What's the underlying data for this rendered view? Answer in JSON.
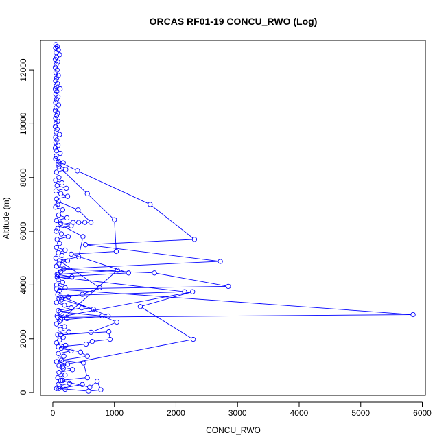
{
  "chart_data": {
    "type": "line",
    "title": "ORCAS RF01-19 CONCU_RWO (Log)",
    "xlabel": "CONCU_RWO",
    "ylabel": "Altitude (m)",
    "xlim": [
      -200,
      6050
    ],
    "ylim": [
      -100,
      13100
    ],
    "x_ticks": [
      0,
      1000,
      2000,
      3000,
      4000,
      5000,
      6000
    ],
    "y_ticks": [
      0,
      2000,
      4000,
      6000,
      8000,
      10000,
      12000
    ],
    "grid": false,
    "legend": "none",
    "color": "#0000ff",
    "marker": "open-circle",
    "series": [
      {
        "points": [
          [
            50,
            12950
          ],
          [
            70,
            12880
          ],
          [
            45,
            12820
          ],
          [
            90,
            12750
          ],
          [
            55,
            12650
          ],
          [
            110,
            12570
          ],
          [
            60,
            12480
          ],
          [
            40,
            12400
          ],
          [
            80,
            12300
          ],
          [
            55,
            12200
          ],
          [
            40,
            12100
          ],
          [
            70,
            12000
          ],
          [
            50,
            11900
          ],
          [
            90,
            11800
          ],
          [
            60,
            11700
          ],
          [
            45,
            11600
          ],
          [
            75,
            11500
          ],
          [
            55,
            11400
          ],
          [
            40,
            11300
          ],
          [
            120,
            11300
          ],
          [
            65,
            11200
          ],
          [
            50,
            11100
          ],
          [
            85,
            11000
          ],
          [
            60,
            10900
          ],
          [
            45,
            10800
          ],
          [
            95,
            10700
          ],
          [
            55,
            10600
          ],
          [
            40,
            10500
          ],
          [
            75,
            10400
          ],
          [
            60,
            10300
          ],
          [
            45,
            10200
          ],
          [
            80,
            10100
          ],
          [
            50,
            10000
          ],
          [
            40,
            9900
          ],
          [
            70,
            9800
          ],
          [
            55,
            9700
          ],
          [
            110,
            9600
          ],
          [
            45,
            9500
          ],
          [
            65,
            9400
          ],
          [
            50,
            9300
          ],
          [
            85,
            9200
          ],
          [
            40,
            9100
          ],
          [
            60,
            9000
          ],
          [
            120,
            8900
          ],
          [
            55,
            8800
          ],
          [
            45,
            8700
          ],
          [
            170,
            8550
          ],
          [
            90,
            8500
          ],
          [
            210,
            8300
          ],
          [
            60,
            8200
          ],
          [
            100,
            8000
          ],
          [
            45,
            7900
          ],
          [
            150,
            7800
          ],
          [
            70,
            7700
          ],
          [
            220,
            7600
          ],
          [
            50,
            7500
          ],
          [
            130,
            7400
          ],
          [
            240,
            7300
          ],
          [
            60,
            7200
          ],
          [
            80,
            7000
          ],
          [
            45,
            6900
          ],
          [
            160,
            6800
          ],
          [
            95,
            6600
          ],
          [
            230,
            6500
          ],
          [
            60,
            6400
          ],
          [
            130,
            6300
          ],
          [
            300,
            6200
          ],
          [
            80,
            6100
          ],
          [
            55,
            6000
          ],
          [
            140,
            5900
          ],
          [
            250,
            5800
          ],
          [
            70,
            5700
          ],
          [
            110,
            5550
          ],
          [
            60,
            5400
          ],
          [
            200,
            5300
          ],
          [
            90,
            5200
          ],
          [
            150,
            5100
          ],
          [
            50,
            5000
          ],
          [
            240,
            4900
          ],
          [
            100,
            4800
          ],
          [
            60,
            4700
          ],
          [
            180,
            4600
          ],
          [
            130,
            4500
          ],
          [
            70,
            4400
          ],
          [
            310,
            4300
          ],
          [
            90,
            4200
          ],
          [
            160,
            4100
          ],
          [
            60,
            4000
          ],
          [
            200,
            3900
          ],
          [
            110,
            3800
          ],
          [
            80,
            3650
          ],
          [
            250,
            3550
          ],
          [
            140,
            3450
          ],
          [
            60,
            3350
          ],
          [
            190,
            3250
          ],
          [
            300,
            3150
          ],
          [
            90,
            3050
          ],
          [
            150,
            2950
          ],
          [
            70,
            2850
          ],
          [
            230,
            2750
          ],
          [
            110,
            2650
          ],
          [
            60,
            2550
          ],
          [
            190,
            2450
          ],
          [
            120,
            2350
          ],
          [
            260,
            2250
          ],
          [
            80,
            2150
          ],
          [
            170,
            2050
          ],
          [
            110,
            1950
          ],
          [
            60,
            1850
          ],
          [
            210,
            1750
          ],
          [
            140,
            1650
          ],
          [
            300,
            1550
          ],
          [
            90,
            1450
          ],
          [
            180,
            1350
          ],
          [
            120,
            1250
          ],
          [
            60,
            1150
          ],
          [
            240,
            1050
          ],
          [
            150,
            950
          ],
          [
            320,
            850
          ],
          [
            100,
            750
          ],
          [
            200,
            650
          ],
          [
            80,
            550
          ],
          [
            160,
            450
          ],
          [
            270,
            350
          ],
          [
            110,
            250
          ],
          [
            60,
            150
          ],
          [
            200,
            120
          ],
          [
            90,
            300
          ]
        ]
      },
      {
        "points": [
          [
            90,
            8600
          ],
          [
            400,
            8250
          ],
          [
            1580,
            7000
          ],
          [
            2300,
            5700
          ],
          [
            530,
            5500
          ],
          [
            2720,
            4880
          ],
          [
            120,
            4600
          ],
          [
            1650,
            4450
          ],
          [
            2850,
            3950
          ],
          [
            60,
            3850
          ],
          [
            5850,
            2900
          ],
          [
            80,
            2800
          ],
          [
            2270,
            3750
          ],
          [
            1420,
            3200
          ],
          [
            2280,
            1980
          ],
          [
            100,
            1000
          ],
          [
            170,
            900
          ]
        ]
      },
      {
        "points": [
          [
            100,
            8400
          ],
          [
            560,
            7400
          ],
          [
            1000,
            6430
          ],
          [
            1030,
            5250
          ],
          [
            300,
            5150
          ],
          [
            1230,
            4450
          ],
          [
            70,
            4300
          ],
          [
            2140,
            3750
          ],
          [
            120,
            3600
          ],
          [
            900,
            2850
          ],
          [
            130,
            2700
          ],
          [
            1050,
            4550
          ],
          [
            90,
            4400
          ]
        ]
      },
      {
        "points": [
          [
            90,
            7100
          ],
          [
            410,
            6800
          ],
          [
            620,
            6330
          ],
          [
            520,
            6330
          ],
          [
            420,
            6330
          ],
          [
            330,
            6330
          ],
          [
            120,
            6250
          ],
          [
            490,
            5800
          ],
          [
            420,
            5050
          ],
          [
            110,
            4900
          ],
          [
            760,
            3900
          ],
          [
            480,
            3650
          ],
          [
            100,
            3500
          ],
          [
            660,
            3100
          ],
          [
            470,
            3150
          ],
          [
            120,
            3000
          ],
          [
            800,
            2850
          ],
          [
            1040,
            2620
          ],
          [
            620,
            2240
          ],
          [
            130,
            2150
          ],
          [
            910,
            2260
          ],
          [
            930,
            1980
          ],
          [
            640,
            1900
          ],
          [
            540,
            1800
          ],
          [
            90,
            1700
          ],
          [
            450,
            1500
          ],
          [
            560,
            1350
          ],
          [
            140,
            1200
          ],
          [
            500,
            1100
          ],
          [
            560,
            550
          ],
          [
            130,
            450
          ],
          [
            600,
            200
          ],
          [
            720,
            420
          ],
          [
            780,
            100
          ],
          [
            580,
            50
          ],
          [
            100,
            150
          ],
          [
            480,
            300
          ]
        ]
      }
    ]
  }
}
